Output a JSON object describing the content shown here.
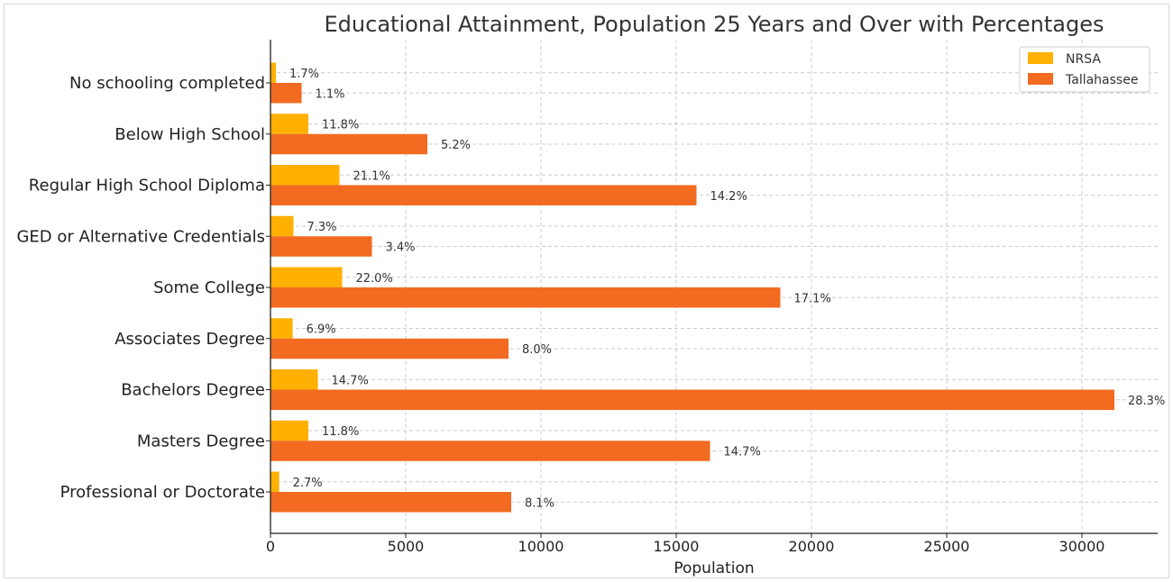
{
  "chart_data": {
    "type": "bar",
    "orientation": "horizontal",
    "title": "Educational Attainment, Population 25 Years and Over with Percentages",
    "xlabel": "Population",
    "ylabel": "",
    "xlim": [
      0,
      32800
    ],
    "xticks": [
      0,
      5000,
      10000,
      15000,
      20000,
      25000,
      30000
    ],
    "grid": true,
    "legend_position": "top-right",
    "categories": [
      "No schooling completed",
      "Below High School",
      "Regular High School Diploma",
      "GED or Alternative Credentials",
      "Some College",
      "Associates Degree",
      "Bachelors Degree",
      "Masters Degree",
      "Professional or Doctorate"
    ],
    "series": [
      {
        "name": "NRSA",
        "color": "#FFB000",
        "values": [
          200,
          1400,
          2550,
          850,
          2650,
          820,
          1750,
          1400,
          320
        ],
        "labels": [
          "1.7%",
          "11.8%",
          "21.1%",
          "7.3%",
          "22.0%",
          "6.9%",
          "14.7%",
          "11.8%",
          "2.7%"
        ]
      },
      {
        "name": "Tallahassee",
        "color": "#F26B21",
        "values": [
          1150,
          5800,
          15750,
          3750,
          18850,
          8800,
          31200,
          16250,
          8900
        ],
        "labels": [
          "1.1%",
          "5.2%",
          "14.2%",
          "3.4%",
          "17.1%",
          "8.0%",
          "28.3%",
          "14.7%",
          "8.1%"
        ]
      }
    ]
  }
}
